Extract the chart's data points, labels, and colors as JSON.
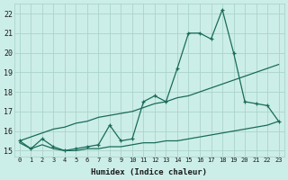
{
  "xlabel": "Humidex (Indice chaleur)",
  "background_color": "#cceee8",
  "grid_color": "#aad4cc",
  "line_color": "#1a6b5a",
  "x_values": [
    0,
    1,
    2,
    3,
    4,
    5,
    6,
    7,
    8,
    9,
    10,
    11,
    12,
    13,
    14,
    15,
    16,
    17,
    18,
    19,
    20,
    21,
    22,
    23
  ],
  "y_jagged": [
    15.5,
    15.1,
    15.6,
    15.2,
    15.0,
    15.1,
    15.2,
    15.3,
    16.3,
    15.5,
    15.6,
    17.5,
    17.8,
    17.5,
    19.2,
    21.0,
    21.0,
    20.7,
    22.2,
    20.0,
    17.5,
    17.4,
    17.3,
    16.5
  ],
  "y_linear": [
    15.5,
    15.7,
    15.9,
    16.1,
    16.2,
    16.4,
    16.5,
    16.7,
    16.8,
    16.9,
    17.0,
    17.2,
    17.4,
    17.5,
    17.7,
    17.8,
    18.0,
    18.2,
    18.4,
    18.6,
    18.8,
    19.0,
    19.2,
    19.4
  ],
  "y_lower": [
    15.4,
    15.1,
    15.3,
    15.1,
    15.0,
    15.0,
    15.1,
    15.1,
    15.2,
    15.2,
    15.3,
    15.4,
    15.4,
    15.5,
    15.5,
    15.6,
    15.7,
    15.8,
    15.9,
    16.0,
    16.1,
    16.2,
    16.3,
    16.5
  ],
  "xlim": [
    -0.5,
    23.5
  ],
  "ylim": [
    14.7,
    22.5
  ],
  "yticks": [
    15,
    16,
    17,
    18,
    19,
    20,
    21,
    22
  ],
  "xticks": [
    0,
    1,
    2,
    3,
    4,
    5,
    6,
    7,
    8,
    9,
    10,
    11,
    12,
    13,
    14,
    15,
    16,
    17,
    18,
    19,
    20,
    21,
    22,
    23
  ]
}
